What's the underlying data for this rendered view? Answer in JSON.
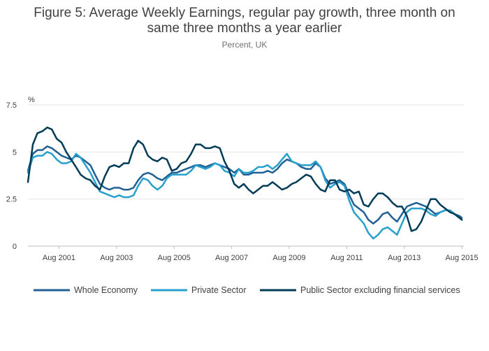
{
  "chart_data": {
    "type": "line",
    "title_lines": [
      "Figure 5: Average Weekly Earnings, regular pay growth, three month on",
      "same three months a year earlier"
    ],
    "subtitle": "Percent, UK",
    "ylabel": "%",
    "xlabel": "",
    "ylim": [
      0,
      7.5
    ],
    "yticks": [
      0,
      2.5,
      5,
      7.5
    ],
    "ytick_labels": [
      "0",
      "2.5",
      "5",
      "7.5"
    ],
    "xlim": [
      2000.5,
      2015.65
    ],
    "xticks": [
      2001.58,
      2003.58,
      2005.58,
      2007.58,
      2009.58,
      2011.58,
      2013.58,
      2015.58
    ],
    "xtick_labels": [
      "Aug 2001",
      "Aug 2003",
      "Aug 2005",
      "Aug 2007",
      "Aug 2009",
      "Aug 2011",
      "Aug 2013",
      "Aug 2015"
    ],
    "grid": true,
    "legend_position": "bottom",
    "series": [
      {
        "name": "Whole Economy",
        "color": "#206095",
        "points": [
          [
            2000.5,
            4.0
          ],
          [
            2000.67,
            4.9
          ],
          [
            2000.83,
            5.1
          ],
          [
            2001.0,
            5.1
          ],
          [
            2001.17,
            5.3
          ],
          [
            2001.33,
            5.2
          ],
          [
            2001.5,
            5.0
          ],
          [
            2001.67,
            4.8
          ],
          [
            2001.83,
            4.7
          ],
          [
            2002.0,
            4.6
          ],
          [
            2002.17,
            4.8
          ],
          [
            2002.33,
            4.7
          ],
          [
            2002.5,
            4.5
          ],
          [
            2002.67,
            4.3
          ],
          [
            2002.83,
            3.8
          ],
          [
            2003.0,
            3.3
          ],
          [
            2003.17,
            3.1
          ],
          [
            2003.33,
            3.0
          ],
          [
            2003.5,
            3.1
          ],
          [
            2003.67,
            3.1
          ],
          [
            2003.83,
            3.0
          ],
          [
            2004.0,
            3.0
          ],
          [
            2004.17,
            3.1
          ],
          [
            2004.33,
            3.5
          ],
          [
            2004.5,
            3.8
          ],
          [
            2004.67,
            3.9
          ],
          [
            2004.83,
            3.8
          ],
          [
            2005.0,
            3.6
          ],
          [
            2005.17,
            3.5
          ],
          [
            2005.33,
            3.7
          ],
          [
            2005.5,
            3.9
          ],
          [
            2005.67,
            3.9
          ],
          [
            2005.83,
            4.0
          ],
          [
            2006.0,
            4.1
          ],
          [
            2006.17,
            4.2
          ],
          [
            2006.33,
            4.3
          ],
          [
            2006.5,
            4.3
          ],
          [
            2006.67,
            4.2
          ],
          [
            2006.83,
            4.3
          ],
          [
            2007.0,
            4.4
          ],
          [
            2007.17,
            4.3
          ],
          [
            2007.33,
            4.2
          ],
          [
            2007.5,
            4.1
          ],
          [
            2007.67,
            3.9
          ],
          [
            2007.83,
            4.1
          ],
          [
            2008.0,
            3.8
          ],
          [
            2008.17,
            3.8
          ],
          [
            2008.33,
            3.9
          ],
          [
            2008.5,
            3.9
          ],
          [
            2008.67,
            3.9
          ],
          [
            2008.83,
            4.0
          ],
          [
            2009.0,
            3.9
          ],
          [
            2009.17,
            4.1
          ],
          [
            2009.33,
            4.4
          ],
          [
            2009.5,
            4.6
          ],
          [
            2009.67,
            4.5
          ],
          [
            2009.83,
            4.4
          ],
          [
            2010.0,
            4.2
          ],
          [
            2010.17,
            4.1
          ],
          [
            2010.33,
            4.1
          ],
          [
            2010.5,
            4.4
          ],
          [
            2010.67,
            4.2
          ],
          [
            2010.83,
            3.6
          ],
          [
            2011.0,
            3.3
          ],
          [
            2011.17,
            3.4
          ],
          [
            2011.33,
            3.5
          ],
          [
            2011.5,
            3.3
          ],
          [
            2011.67,
            2.7
          ],
          [
            2011.83,
            2.2
          ],
          [
            2012.0,
            2.0
          ],
          [
            2012.17,
            1.8
          ],
          [
            2012.33,
            1.4
          ],
          [
            2012.5,
            1.2
          ],
          [
            2012.67,
            1.4
          ],
          [
            2012.83,
            1.7
          ],
          [
            2013.0,
            1.8
          ],
          [
            2013.17,
            1.5
          ],
          [
            2013.33,
            1.3
          ],
          [
            2013.5,
            1.7
          ],
          [
            2013.67,
            2.1
          ],
          [
            2013.83,
            2.2
          ],
          [
            2014.0,
            2.3
          ],
          [
            2014.17,
            2.2
          ],
          [
            2014.33,
            2.1
          ],
          [
            2014.5,
            1.9
          ],
          [
            2014.67,
            1.7
          ],
          [
            2014.83,
            1.8
          ],
          [
            2015.0,
            1.9
          ],
          [
            2015.17,
            1.9
          ],
          [
            2015.33,
            1.7
          ],
          [
            2015.5,
            1.6
          ],
          [
            2015.58,
            1.5
          ]
        ]
      },
      {
        "name": "Private Sector",
        "color": "#27a0cc",
        "points": [
          [
            2000.5,
            3.9
          ],
          [
            2000.67,
            4.7
          ],
          [
            2000.83,
            4.8
          ],
          [
            2001.0,
            4.8
          ],
          [
            2001.17,
            5.0
          ],
          [
            2001.33,
            4.9
          ],
          [
            2001.5,
            4.6
          ],
          [
            2001.67,
            4.4
          ],
          [
            2001.83,
            4.4
          ],
          [
            2002.0,
            4.5
          ],
          [
            2002.17,
            4.9
          ],
          [
            2002.33,
            4.7
          ],
          [
            2002.5,
            4.3
          ],
          [
            2002.67,
            3.9
          ],
          [
            2002.83,
            3.4
          ],
          [
            2003.0,
            2.9
          ],
          [
            2003.17,
            2.8
          ],
          [
            2003.33,
            2.7
          ],
          [
            2003.5,
            2.6
          ],
          [
            2003.67,
            2.7
          ],
          [
            2003.83,
            2.6
          ],
          [
            2004.0,
            2.6
          ],
          [
            2004.17,
            2.7
          ],
          [
            2004.33,
            3.2
          ],
          [
            2004.5,
            3.6
          ],
          [
            2004.67,
            3.5
          ],
          [
            2004.83,
            3.2
          ],
          [
            2005.0,
            3.0
          ],
          [
            2005.17,
            3.2
          ],
          [
            2005.33,
            3.6
          ],
          [
            2005.5,
            3.8
          ],
          [
            2005.67,
            3.8
          ],
          [
            2005.83,
            3.8
          ],
          [
            2006.0,
            3.8
          ],
          [
            2006.17,
            4.0
          ],
          [
            2006.33,
            4.3
          ],
          [
            2006.5,
            4.2
          ],
          [
            2006.67,
            4.1
          ],
          [
            2006.83,
            4.2
          ],
          [
            2007.0,
            4.4
          ],
          [
            2007.17,
            4.3
          ],
          [
            2007.33,
            4.0
          ],
          [
            2007.5,
            3.9
          ],
          [
            2007.67,
            3.7
          ],
          [
            2007.83,
            4.1
          ],
          [
            2008.0,
            3.9
          ],
          [
            2008.17,
            3.9
          ],
          [
            2008.33,
            4.0
          ],
          [
            2008.5,
            4.2
          ],
          [
            2008.67,
            4.2
          ],
          [
            2008.83,
            4.3
          ],
          [
            2009.0,
            4.1
          ],
          [
            2009.17,
            4.3
          ],
          [
            2009.33,
            4.6
          ],
          [
            2009.5,
            4.9
          ],
          [
            2009.67,
            4.5
          ],
          [
            2009.83,
            4.4
          ],
          [
            2010.0,
            4.3
          ],
          [
            2010.17,
            4.3
          ],
          [
            2010.33,
            4.3
          ],
          [
            2010.5,
            4.5
          ],
          [
            2010.67,
            4.2
          ],
          [
            2010.83,
            3.5
          ],
          [
            2011.0,
            3.1
          ],
          [
            2011.17,
            3.3
          ],
          [
            2011.33,
            3.4
          ],
          [
            2011.5,
            3.2
          ],
          [
            2011.67,
            2.4
          ],
          [
            2011.83,
            1.8
          ],
          [
            2012.0,
            1.5
          ],
          [
            2012.17,
            1.2
          ],
          [
            2012.33,
            0.7
          ],
          [
            2012.5,
            0.4
          ],
          [
            2012.67,
            0.6
          ],
          [
            2012.83,
            0.9
          ],
          [
            2013.0,
            1.0
          ],
          [
            2013.17,
            0.8
          ],
          [
            2013.33,
            0.6
          ],
          [
            2013.5,
            1.2
          ],
          [
            2013.67,
            1.8
          ],
          [
            2013.83,
            2.0
          ],
          [
            2014.0,
            2.0
          ],
          [
            2014.17,
            2.0
          ],
          [
            2014.33,
            1.9
          ],
          [
            2014.5,
            1.7
          ],
          [
            2014.67,
            1.6
          ],
          [
            2014.83,
            1.8
          ],
          [
            2015.0,
            1.9
          ],
          [
            2015.17,
            1.9
          ],
          [
            2015.33,
            1.7
          ],
          [
            2015.5,
            1.5
          ],
          [
            2015.58,
            1.4
          ]
        ]
      },
      {
        "name": "Public Sector excluding financial services",
        "color": "#003c57",
        "points": [
          [
            2000.5,
            3.4
          ],
          [
            2000.67,
            5.4
          ],
          [
            2000.83,
            6.0
          ],
          [
            2001.0,
            6.1
          ],
          [
            2001.17,
            6.3
          ],
          [
            2001.33,
            6.2
          ],
          [
            2001.5,
            5.7
          ],
          [
            2001.67,
            5.5
          ],
          [
            2001.83,
            5.0
          ],
          [
            2002.0,
            4.6
          ],
          [
            2002.17,
            4.2
          ],
          [
            2002.33,
            3.8
          ],
          [
            2002.5,
            3.6
          ],
          [
            2002.67,
            3.5
          ],
          [
            2002.83,
            3.2
          ],
          [
            2003.0,
            3.0
          ],
          [
            2003.17,
            3.7
          ],
          [
            2003.33,
            4.2
          ],
          [
            2003.5,
            4.3
          ],
          [
            2003.67,
            4.2
          ],
          [
            2003.83,
            4.4
          ],
          [
            2004.0,
            4.4
          ],
          [
            2004.17,
            5.2
          ],
          [
            2004.33,
            5.6
          ],
          [
            2004.5,
            5.4
          ],
          [
            2004.67,
            4.8
          ],
          [
            2004.83,
            4.6
          ],
          [
            2005.0,
            4.5
          ],
          [
            2005.17,
            4.7
          ],
          [
            2005.33,
            4.6
          ],
          [
            2005.5,
            4.0
          ],
          [
            2005.67,
            4.1
          ],
          [
            2005.83,
            4.4
          ],
          [
            2006.0,
            4.5
          ],
          [
            2006.17,
            4.9
          ],
          [
            2006.33,
            5.4
          ],
          [
            2006.5,
            5.4
          ],
          [
            2006.67,
            5.2
          ],
          [
            2006.83,
            5.2
          ],
          [
            2007.0,
            5.3
          ],
          [
            2007.17,
            5.2
          ],
          [
            2007.33,
            4.5
          ],
          [
            2007.5,
            4.0
          ],
          [
            2007.67,
            3.3
          ],
          [
            2007.83,
            3.1
          ],
          [
            2008.0,
            3.3
          ],
          [
            2008.17,
            3.0
          ],
          [
            2008.33,
            2.8
          ],
          [
            2008.5,
            3.0
          ],
          [
            2008.67,
            3.2
          ],
          [
            2008.83,
            3.2
          ],
          [
            2009.0,
            3.4
          ],
          [
            2009.17,
            3.2
          ],
          [
            2009.33,
            3.0
          ],
          [
            2009.5,
            3.1
          ],
          [
            2009.67,
            3.3
          ],
          [
            2009.83,
            3.4
          ],
          [
            2010.0,
            3.6
          ],
          [
            2010.17,
            3.8
          ],
          [
            2010.33,
            3.7
          ],
          [
            2010.5,
            3.3
          ],
          [
            2010.67,
            3.0
          ],
          [
            2010.83,
            2.9
          ],
          [
            2011.0,
            3.5
          ],
          [
            2011.17,
            3.5
          ],
          [
            2011.33,
            3.0
          ],
          [
            2011.5,
            2.9
          ],
          [
            2011.67,
            3.0
          ],
          [
            2011.83,
            2.8
          ],
          [
            2012.0,
            2.9
          ],
          [
            2012.17,
            2.2
          ],
          [
            2012.33,
            2.1
          ],
          [
            2012.5,
            2.5
          ],
          [
            2012.67,
            2.8
          ],
          [
            2012.83,
            2.8
          ],
          [
            2013.0,
            2.6
          ],
          [
            2013.17,
            2.3
          ],
          [
            2013.33,
            2.1
          ],
          [
            2013.5,
            2.1
          ],
          [
            2013.67,
            1.6
          ],
          [
            2013.83,
            0.8
          ],
          [
            2014.0,
            0.9
          ],
          [
            2014.17,
            1.3
          ],
          [
            2014.33,
            1.9
          ],
          [
            2014.5,
            2.5
          ],
          [
            2014.67,
            2.5
          ],
          [
            2014.83,
            2.2
          ],
          [
            2015.0,
            2.0
          ],
          [
            2015.17,
            1.8
          ],
          [
            2015.33,
            1.7
          ],
          [
            2015.5,
            1.5
          ],
          [
            2015.58,
            1.4
          ]
        ]
      }
    ]
  }
}
